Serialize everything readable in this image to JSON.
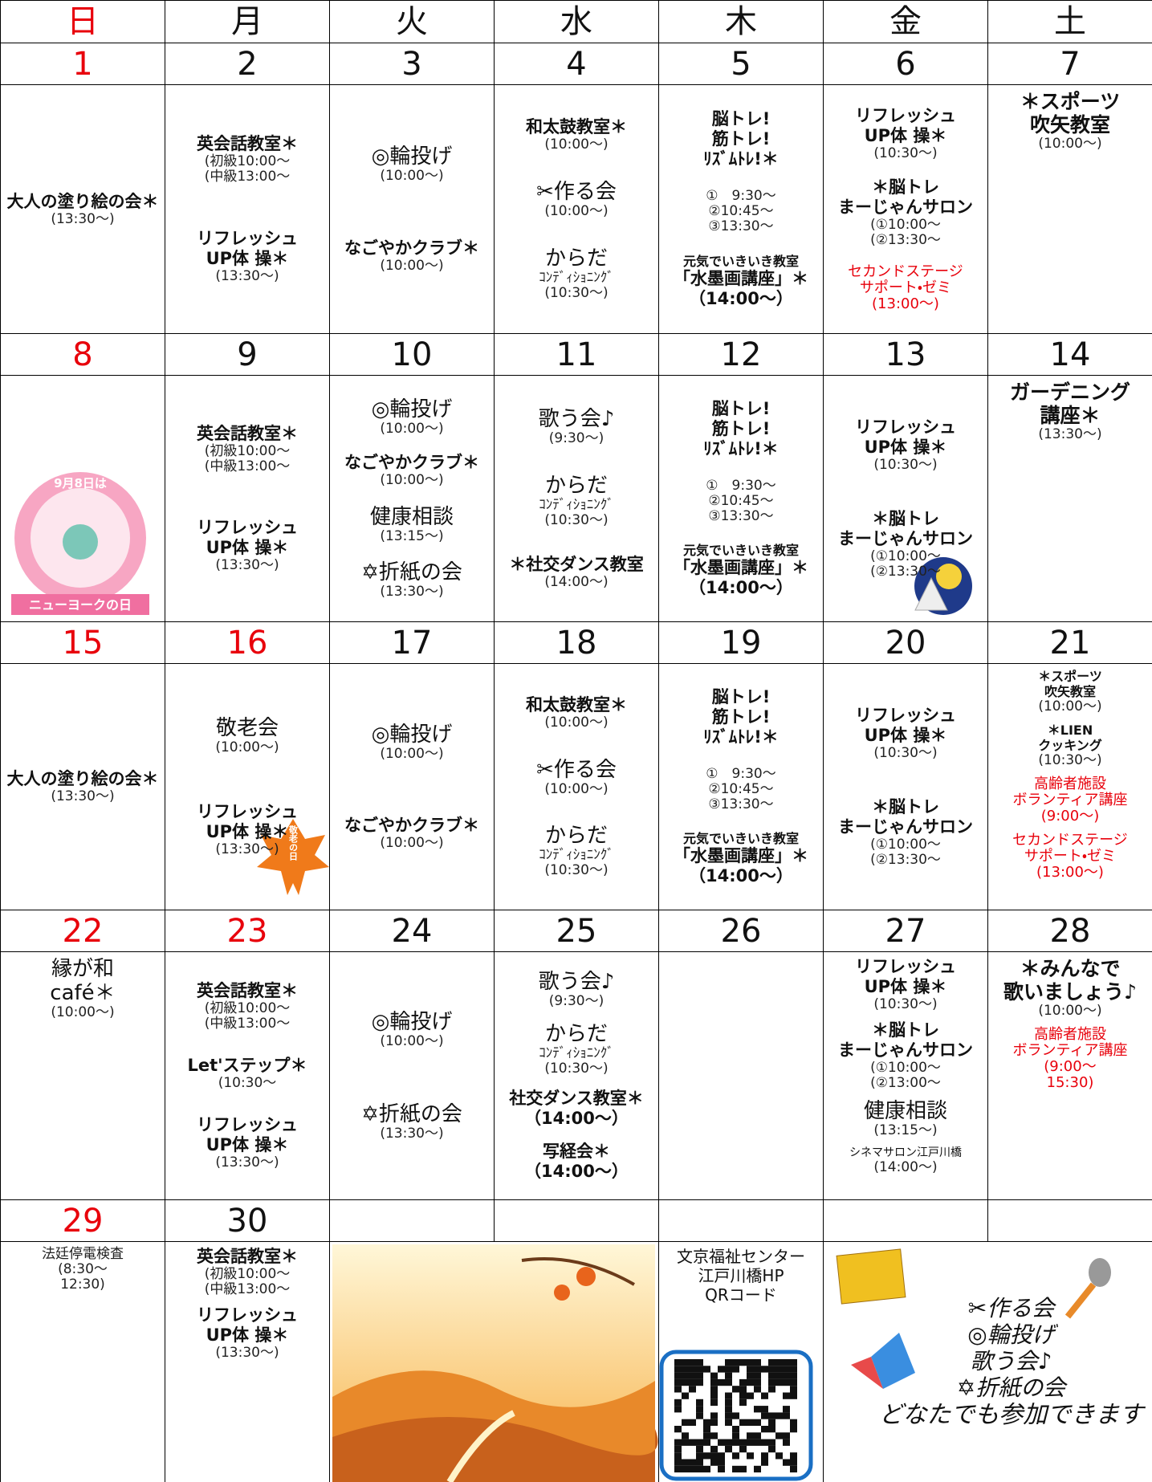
{
  "weekdays": [
    "日",
    "月",
    "火",
    "水",
    "木",
    "金",
    "土"
  ],
  "weeks": [
    {
      "dates": [
        1,
        2,
        3,
        4,
        5,
        6,
        7
      ],
      "cells": [
        [
          [
            "大人の塗り絵の会＊",
            "(13:30～)"
          ]
        ],
        [
          [
            "英会話教室＊",
            "(初級10:00～",
            "(中級13:00～"
          ],
          [
            "リフレッシュ",
            "UP体 操＊",
            "(13:30～)"
          ]
        ],
        [
          [
            "◎輪投げ",
            "(10:00～)"
          ],
          [
            "なごやかクラブ＊",
            "(10:00～)"
          ]
        ],
        [
          [
            "和太鼓教室＊",
            "(10:00～)"
          ],
          [
            "✂作る会",
            "(10:00～)"
          ],
          [
            "からだ",
            "ｺﾝﾃﾞｨｼｮﾆﾝｸﾞ",
            "(10:30～)"
          ]
        ],
        [
          [
            "脳トレ!",
            "筋トレ!",
            "ﾘｽﾞﾑﾄﾚ!＊"
          ],
          [
            "①　9:30～",
            "②10:45～",
            "③13:30～"
          ],
          [
            "元気でいきいき教室",
            "「水墨画講座」＊",
            "（14:00～）"
          ]
        ],
        [
          [
            "リフレッシュ",
            "UP体 操＊",
            "(10:30～)"
          ],
          [
            "＊脳トレ",
            "まーじゃんサロン",
            "(①10:00～",
            "(②13:30～"
          ],
          [
            "セカンドステージ",
            "サポート・ゼミ",
            "(13:00～)"
          ]
        ],
        [
          [
            "＊スポーツ",
            "吹矢教室",
            "(10:00～)"
          ]
        ]
      ]
    },
    {
      "dates": [
        8,
        9,
        10,
        11,
        12,
        13,
        14
      ],
      "badge": [
        "9月8日は",
        "ニューヨークの日"
      ],
      "cells": [
        [],
        [
          [
            "英会話教室＊",
            "(初級10:00～",
            "(中級13:00～"
          ],
          [
            "リフレッシュ",
            "UP体 操＊",
            "(13:30～)"
          ]
        ],
        [
          [
            "◎輪投げ",
            "(10:00～)"
          ],
          [
            "なごやかクラブ＊",
            "(10:00～)"
          ],
          [
            "健康相談",
            "(13:15～)"
          ],
          [
            "✡折紙の会",
            "(13:30～)"
          ]
        ],
        [
          [
            "歌う会♪",
            "(9:30～)"
          ],
          [
            "からだ",
            "ｺﾝﾃﾞｨｼｮﾆﾝｸﾞ",
            "(10:30～)"
          ],
          [
            "＊社交ダンス教室",
            "(14:00～)"
          ]
        ],
        [
          [
            "脳トレ!",
            "筋トレ!",
            "ﾘｽﾞﾑﾄﾚ!＊"
          ],
          [
            "①　9:30～",
            "②10:45～",
            "③13:30～"
          ],
          [
            "元気でいきいき教室",
            "「水墨画講座」＊",
            "（14:00～）"
          ]
        ],
        [
          [
            "リフレッシュ",
            "UP体 操＊",
            "(10:30～)"
          ],
          [
            "＊脳トレ",
            "まーじゃんサロン",
            "(①10:00～",
            "(②13:30～"
          ]
        ],
        [
          [
            "ガーデニング",
            "講座＊",
            "(13:30～)"
          ]
        ]
      ]
    },
    {
      "dates": [
        15,
        16,
        17,
        18,
        19,
        20,
        21
      ],
      "leaf": "敬老の日",
      "cells": [
        [
          [
            "大人の塗り絵の会＊",
            "(13:30～)"
          ]
        ],
        [
          [
            "敬老会",
            "(10:00～)"
          ],
          [
            "リフレッシュ",
            "UP体 操＊",
            "(13:30～)"
          ]
        ],
        [
          [
            "◎輪投げ",
            "(10:00～)"
          ],
          [
            "なごやかクラブ＊",
            "(10:00～)"
          ]
        ],
        [
          [
            "和太鼓教室＊",
            "(10:00～)"
          ],
          [
            "✂作る会",
            "(10:00～)"
          ],
          [
            "からだ",
            "ｺﾝﾃﾞｨｼｮﾆﾝｸﾞ",
            "(10:30～)"
          ]
        ],
        [
          [
            "脳トレ!",
            "筋トレ!",
            "ﾘｽﾞﾑﾄﾚ!＊"
          ],
          [
            "①　9:30～",
            "②10:45～",
            "③13:30～"
          ],
          [
            "元気でいきいき教室",
            "「水墨画講座」＊",
            "（14:00～）"
          ]
        ],
        [
          [
            "リフレッシュ",
            "UP体 操＊",
            "(10:30～)"
          ],
          [
            "＊脳トレ",
            "まーじゃんサロン",
            "(①10:00～",
            "(②13:30～"
          ]
        ],
        [
          [
            "＊スポーツ",
            "吹矢教室",
            "(10:00～)"
          ],
          [
            "＊LIEN",
            "クッキング",
            "(10:30～)"
          ],
          [
            "高齢者施設",
            "ボランティア講座",
            "(9:00～)"
          ],
          [
            "セカンドステージ",
            "サポート・ゼミ",
            "(13:00～)"
          ]
        ]
      ]
    },
    {
      "dates": [
        22,
        23,
        24,
        25,
        26,
        27,
        28
      ],
      "cells": [
        [
          [
            "縁が和",
            "café＊",
            "(10:00～)"
          ]
        ],
        [
          [
            "英会話教室＊",
            "(初級10:00～",
            "(中級13:00～"
          ],
          [
            "Let'ステップ＊",
            "(10:30～"
          ],
          [
            "リフレッシュ",
            "UP体 操＊",
            "(13:30～)"
          ]
        ],
        [
          [
            "◎輪投げ",
            "(10:00～)"
          ],
          [
            "✡折紙の会",
            "(13:30～)"
          ]
        ],
        [
          [
            "歌う会♪",
            "(9:30～)"
          ],
          [
            "からだ",
            "ｺﾝﾃﾞｨｼｮﾆﾝｸﾞ",
            "(10:30～)"
          ],
          [
            "社交ダンス教室＊",
            "（14:00～）"
          ],
          [
            "写経会＊",
            "（14:00～）"
          ]
        ],
        [],
        [
          [
            "リフレッシュ",
            "UP体 操＊",
            "(10:30～)"
          ],
          [
            "＊脳トレ",
            "まーじゃんサロン",
            "(①10:00～",
            "(②13:00～"
          ],
          [
            "健康相談",
            "(13:15～)"
          ],
          [
            "シネマサロン江戸川橋",
            "(14:00～)"
          ]
        ],
        [
          [
            "＊みんなで",
            "歌いましょう♪",
            "(10:00～)"
          ],
          [
            "高齢者施設",
            "ボランティア講座",
            "(9:00～",
            "15:30)"
          ]
        ]
      ]
    },
    {
      "dates": [
        29,
        30,
        null,
        null,
        null,
        null,
        null
      ],
      "cells": [
        [
          [
            "法廷停電検査",
            "(8:30～",
            "12:30)"
          ]
        ],
        [
          [
            "英会話教室＊",
            "(初級10:00～",
            "(中級13:00～"
          ],
          [
            "リフレッシュ",
            "UP体 操＊",
            "(13:30～)"
          ]
        ],
        [],
        [],
        [
          [
            "文京福祉センター",
            "江戸川橋HP",
            "QRコード"
          ]
        ],
        [
          [
            "✂作る会",
            "◎輪投げ",
            "歌う会♪",
            "✡折紙の会",
            "どなたでも参加できます"
          ]
        ],
        []
      ]
    }
  ]
}
